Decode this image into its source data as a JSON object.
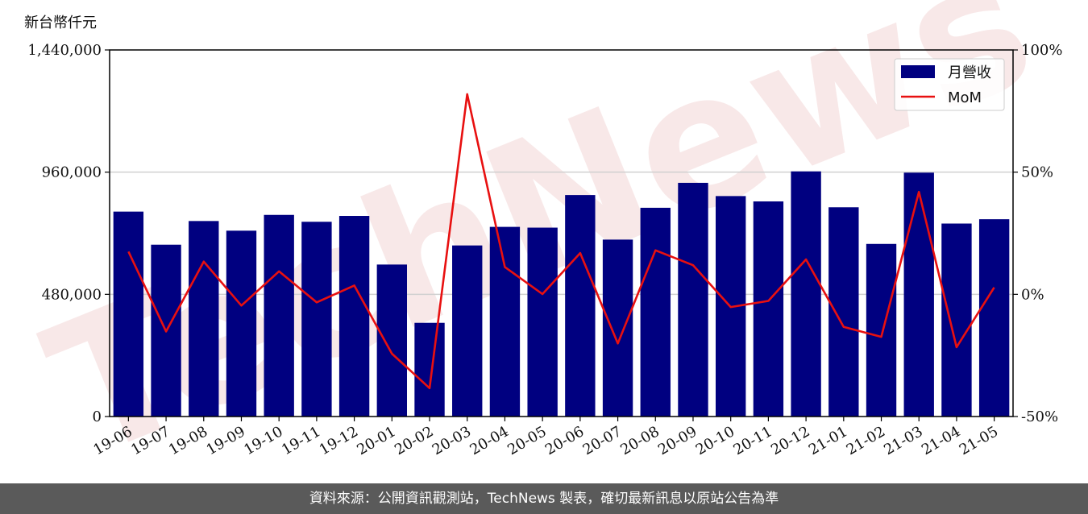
{
  "unit_label": "新台幣仟元",
  "watermark": "TechNews",
  "footer": "資料來源：公開資訊觀測站，TechNews 製表，確切最新訊息以原站公告為準",
  "colors": {
    "bar": "#000080",
    "line": "#e81010",
    "grid": "#d0d0d0",
    "footer_bg": "#5a5a5a"
  },
  "chart_data": {
    "type": "bar",
    "categories": [
      "19-06",
      "19-07",
      "19-08",
      "19-09",
      "19-10",
      "19-11",
      "19-12",
      "20-01",
      "20-02",
      "20-03",
      "20-04",
      "20-05",
      "20-06",
      "20-07",
      "20-08",
      "20-09",
      "20-10",
      "20-11",
      "20-12",
      "21-01",
      "21-02",
      "21-03",
      "21-04",
      "21-05"
    ],
    "series": [
      {
        "name": "月營收",
        "type": "bar",
        "axis": "left",
        "values": [
          805000,
          675000,
          768000,
          730000,
          792000,
          765000,
          788000,
          597000,
          368000,
          672000,
          745000,
          742000,
          870000,
          695000,
          820000,
          918000,
          866000,
          845000,
          963000,
          822000,
          678000,
          958000,
          758000,
          775000
        ]
      },
      {
        "name": "MoM",
        "type": "line",
        "axis": "right",
        "values": [
          17.5,
          -15.2,
          13.4,
          -4.6,
          9.4,
          -3.3,
          3.6,
          -24.3,
          -38.4,
          81.9,
          11.2,
          0.1,
          16.9,
          -20.1,
          18.0,
          11.9,
          -5.2,
          -2.7,
          14.3,
          -13.3,
          -17.4,
          41.9,
          -21.6,
          2.8
        ]
      }
    ],
    "y_left": {
      "ylim": [
        0,
        1440000
      ],
      "ticks": [
        0,
        480000,
        960000,
        1440000
      ],
      "tick_labels": [
        "0",
        "480,000",
        "960,000",
        "1,440,000"
      ]
    },
    "y_right": {
      "ylim": [
        -50,
        100
      ],
      "ticks": [
        -50,
        0,
        50,
        100
      ],
      "tick_labels": [
        "-50%",
        "0%",
        "50%",
        "100%"
      ]
    },
    "grid": "horizontal",
    "legend": {
      "placement": "top-right",
      "entries": [
        "月營收",
        "MoM"
      ]
    }
  }
}
